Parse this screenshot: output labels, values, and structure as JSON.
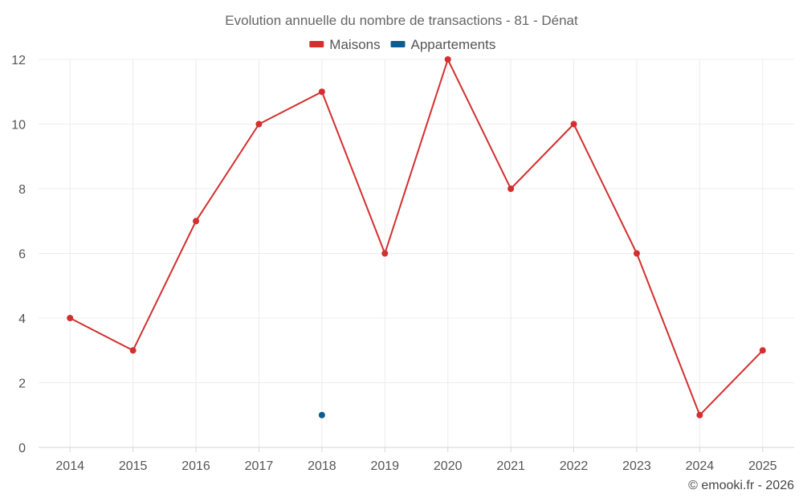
{
  "chart_data": {
    "type": "line",
    "title": "Evolution annuelle du nombre de transactions - 81 - Dénat",
    "xlabel": "",
    "ylabel": "",
    "categories": [
      "2014",
      "2015",
      "2016",
      "2017",
      "2018",
      "2019",
      "2020",
      "2021",
      "2022",
      "2023",
      "2024",
      "2025"
    ],
    "ylim": [
      0,
      12
    ],
    "yticks": [
      0,
      2,
      4,
      6,
      8,
      10,
      12
    ],
    "grid": true,
    "legend_position": "top",
    "series": [
      {
        "name": "Maisons",
        "color": "#d32f2f",
        "values": [
          4,
          3,
          7,
          10,
          11,
          6,
          12,
          8,
          10,
          6,
          1,
          3
        ]
      },
      {
        "name": "Appartements",
        "color": "#0d5c91",
        "values": [
          null,
          null,
          null,
          null,
          1,
          null,
          null,
          null,
          null,
          null,
          null,
          null
        ]
      }
    ]
  },
  "credit": "© emooki.fr - 2026"
}
